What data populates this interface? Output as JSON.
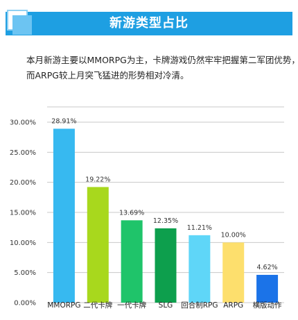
{
  "header": {
    "title": "新游类型占比"
  },
  "intro": {
    "line1": "本月新游主要以MMORPG为主，卡牌游戏仍然牢牢把握第二军团优势，",
    "line2": "而ARPG较上月突飞猛进的形势相对冷清。"
  },
  "chart_data": {
    "type": "bar",
    "categories": [
      "MMORPG",
      "二代卡牌",
      "一代卡牌",
      "SLG",
      "回合制RPG",
      "ARPG",
      "横版动作"
    ],
    "values": [
      28.91,
      19.22,
      13.69,
      12.35,
      11.21,
      10.0,
      4.62
    ],
    "data_labels": [
      "28.91%",
      "19.22%",
      "13.69%",
      "12.35%",
      "11.21%",
      "10.00%",
      "4.62%"
    ],
    "y_ticks": [
      0,
      5,
      10,
      15,
      20,
      25,
      30
    ],
    "y_tick_labels": [
      "0.00%",
      "5.00%",
      "10.00%",
      "15.00%",
      "20.00%",
      "25.00%",
      "30.00%"
    ],
    "ylim": [
      0,
      30
    ],
    "colors": [
      "#37b9f0",
      "#a8d81d",
      "#1fc46a",
      "#0d9f4d",
      "#5fd6f8",
      "#fddf6d",
      "#1b73e8"
    ],
    "grid": true,
    "title": "",
    "xlabel": "",
    "ylabel": ""
  }
}
